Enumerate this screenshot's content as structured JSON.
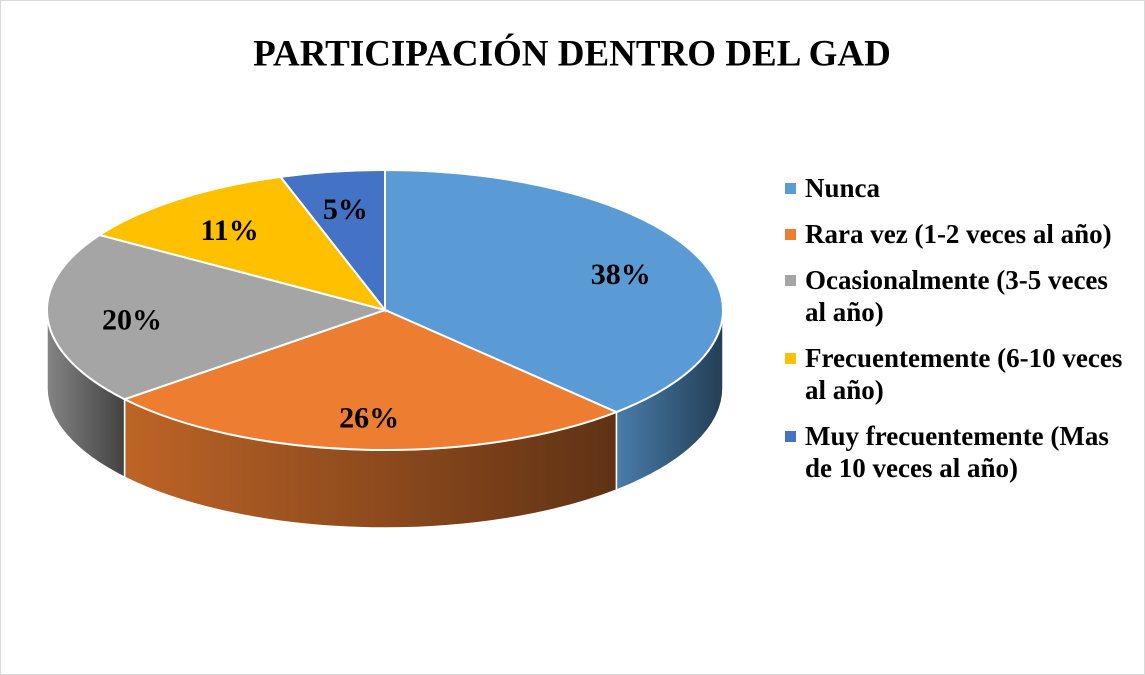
{
  "chart_data": {
    "type": "pie",
    "title": "PARTICIPACIÓN DENTRO DEL GAD",
    "categories": [
      "Nunca",
      "Rara vez (1-2 veces al año)",
      "Ocasionalmente (3-5 veces al año)",
      "Frecuentemente (6-10 veces al año)",
      "Muy frecuentemente (Mas de 10 veces al año)"
    ],
    "values": [
      38,
      26,
      20,
      11,
      5
    ],
    "value_labels": [
      "38%",
      "26%",
      "20%",
      "11%",
      "5%"
    ],
    "colors": [
      "#5b9bd5",
      "#ed7d31",
      "#a5a5a5",
      "#ffc000",
      "#4472c4"
    ],
    "legend": "right"
  }
}
